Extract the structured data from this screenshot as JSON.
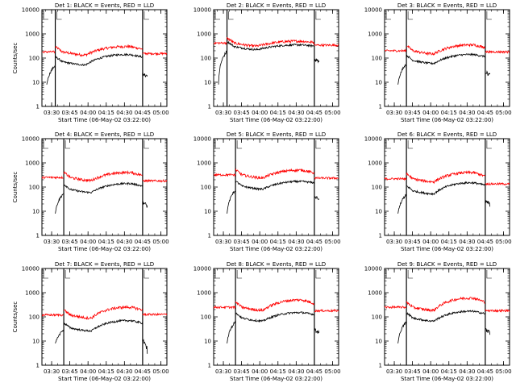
{
  "chart_data": {
    "type": "line",
    "layout": "3x3 grid of detector panels",
    "y_scale": "log",
    "ylim": [
      1,
      10000
    ],
    "y_ticks": [
      "1",
      "10",
      "100",
      "1000",
      "10000"
    ],
    "x_ticks": [
      "03:30",
      "03:45",
      "04:00",
      "04:15",
      "04:30",
      "04:45",
      "05:00"
    ],
    "xlim": [
      "03:22",
      "05:05"
    ],
    "xlabel": "Start Time (06-May-02 03:22:00)",
    "ylabel": "Counts/sec",
    "series_colors": {
      "events": "#000000",
      "lld": "#ff0000"
    },
    "panels": [
      {
        "title": "Det 1: BLACK = Events, RED = LLD",
        "night_start": "03:33",
        "night_end": "04:45",
        "events_level": [
          70,
          140,
          80
        ],
        "lld_level": [
          180,
          300,
          170
        ]
      },
      {
        "title": "Det 2: BLACK = Events, RED = LLD",
        "night_start": "03:33",
        "night_end": "04:45",
        "events_level": [
          300,
          350,
          280
        ],
        "lld_level": [
          420,
          500,
          380
        ]
      },
      {
        "title": "Det 3: BLACK = Events, RED = LLD",
        "night_start": "03:40",
        "night_end": "04:45",
        "events_level": [
          80,
          140,
          90
        ],
        "lld_level": [
          200,
          350,
          200
        ]
      },
      {
        "title": "Det 4: BLACK = Events, RED = LLD",
        "night_start": "03:40",
        "night_end": "04:45",
        "events_level": [
          80,
          140,
          80
        ],
        "lld_level": [
          250,
          400,
          200
        ]
      },
      {
        "title": "Det 5: BLACK = Events, RED = LLD",
        "night_start": "03:40",
        "night_end": "04:45",
        "events_level": [
          110,
          170,
          130
        ],
        "lld_level": [
          320,
          500,
          260
        ]
      },
      {
        "title": "Det 6: BLACK = Events, RED = LLD",
        "night_start": "03:40",
        "night_end": "04:45",
        "events_level": [
          70,
          150,
          90
        ],
        "lld_level": [
          220,
          400,
          150
        ]
      },
      {
        "title": "Det 7: BLACK = Events, RED = LLD",
        "night_start": "03:40",
        "night_end": "04:45",
        "events_level": [
          35,
          70,
          40
        ],
        "lld_level": [
          120,
          250,
          140
        ]
      },
      {
        "title": "Det 8: BLACK = Events, RED = LLD",
        "night_start": "03:40",
        "night_end": "04:45",
        "events_level": [
          90,
          150,
          100
        ],
        "lld_level": [
          250,
          500,
          200
        ]
      },
      {
        "title": "Det 9: BLACK = Events, RED = LLD",
        "night_start": "03:40",
        "night_end": "04:45",
        "events_level": [
          90,
          170,
          100
        ],
        "lld_level": [
          250,
          600,
          200
        ]
      }
    ]
  }
}
